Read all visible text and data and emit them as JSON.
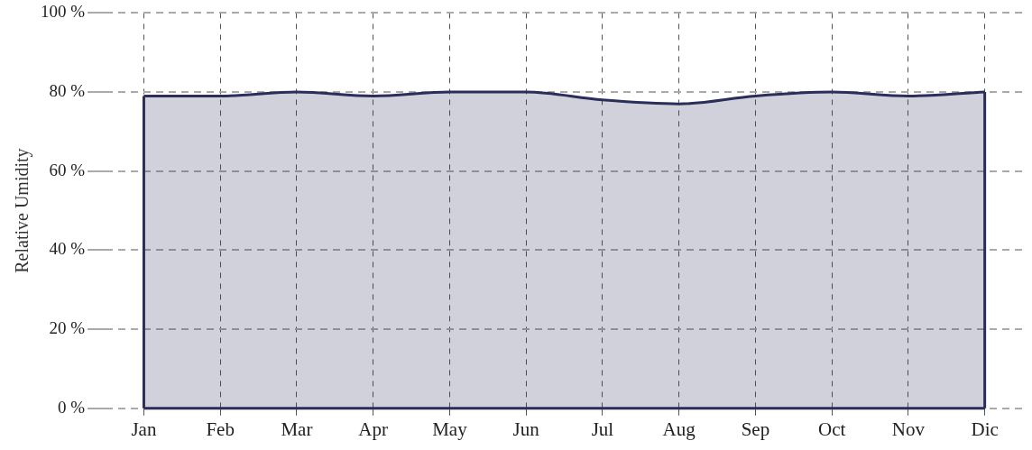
{
  "chart_data": {
    "type": "area",
    "ylabel": "Relative Umidity",
    "categories": [
      "Jan",
      "Feb",
      "Mar",
      "Apr",
      "May",
      "Jun",
      "Jul",
      "Aug",
      "Sep",
      "Oct",
      "Nov",
      "Dic"
    ],
    "series": [
      {
        "color": "#2b2d5a",
        "values": [
          79,
          79,
          80,
          79,
          80,
          80,
          78,
          77,
          79,
          80,
          79,
          80
        ]
      }
    ],
    "ylim": [
      0,
      100
    ],
    "yticks": [
      {
        "value": 0,
        "label": "0 %"
      },
      {
        "value": 20,
        "label": "20 %"
      },
      {
        "value": 40,
        "label": "40 %"
      },
      {
        "value": 60,
        "label": "60 %"
      },
      {
        "value": 80,
        "label": "80 %"
      },
      {
        "value": 100,
        "label": "100 %"
      }
    ],
    "grid": true,
    "legend": false,
    "marker": "none",
    "line_style": "solid"
  }
}
